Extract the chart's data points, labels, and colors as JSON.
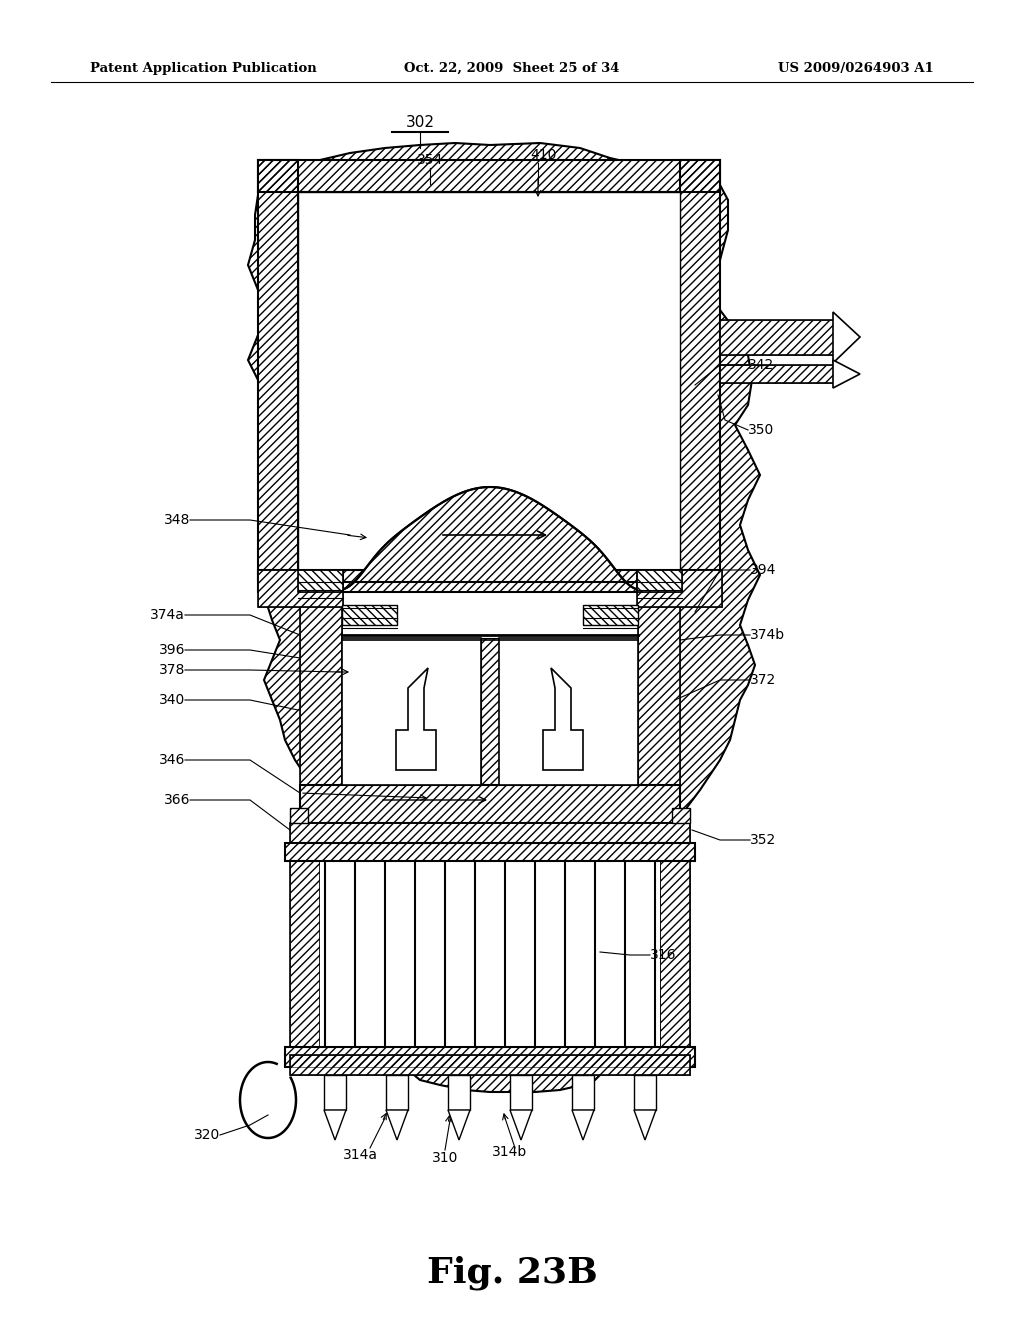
{
  "bg_color": "#ffffff",
  "header_left": "Patent Application Publication",
  "header_mid": "Oct. 22, 2009  Sheet 25 of 34",
  "header_right": "US 2009/0264903 A1",
  "figure_label": "Fig. 23B"
}
